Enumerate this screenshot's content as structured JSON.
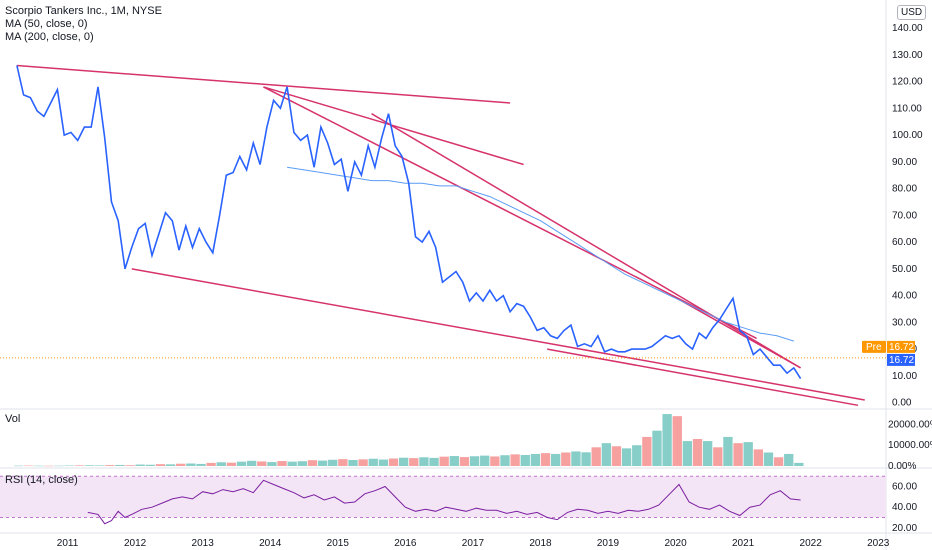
{
  "legend": {
    "title": "Scorpio Tankers Inc., 1M, NYSE",
    "ma50": "MA (50, close, 0)",
    "ma200": "MA (200, close, 0)",
    "vol": "Vol",
    "rsi": "RSI (14, close)"
  },
  "currency": "USD",
  "badges": {
    "pre_label": "Pre",
    "pre_value": "16.72",
    "last_value": "16.72"
  },
  "colors": {
    "price": "#2962ff",
    "ma": "#5b9cf6",
    "trend": "#d6336c",
    "vol_up": "#26a69a",
    "vol_down": "#ef5350",
    "rsi_line": "#7b1fa2",
    "rsi_bg": "#f3e5f5",
    "pre_badge": "#ff9800",
    "last_badge": "#2962ff"
  },
  "chart_data": [
    {
      "type": "line",
      "x_ticks": [
        "2011",
        "2012",
        "2013",
        "2014",
        "2015",
        "2016",
        "2017",
        "2018",
        "2019",
        "2020",
        "2021",
        "2022",
        "2023"
      ],
      "y_ticks": [
        "140.00",
        "130.00",
        "120.00",
        "110.00",
        "100.00",
        "90.00",
        "80.00",
        "70.00",
        "60.00",
        "50.00",
        "40.00",
        "30.00",
        "20.00",
        "10.00",
        "0.00"
      ],
      "ylim": [
        -2,
        146
      ],
      "xlim": [
        2010.0,
        2023.1
      ],
      "series": [
        {
          "role": "price",
          "x": [
            2010.25,
            2010.35,
            2010.45,
            2010.55,
            2010.65,
            2010.75,
            2010.85,
            2010.95,
            2011.05,
            2011.15,
            2011.25,
            2011.35,
            2011.45,
            2011.55,
            2011.65,
            2011.75,
            2011.85,
            2011.95,
            2012.05,
            2012.15,
            2012.25,
            2012.35,
            2012.45,
            2012.55,
            2012.65,
            2012.75,
            2012.85,
            2012.95,
            2013.05,
            2013.15,
            2013.25,
            2013.35,
            2013.45,
            2013.55,
            2013.65,
            2013.75,
            2013.85,
            2013.95,
            2014.05,
            2014.15,
            2014.25,
            2014.35,
            2014.45,
            2014.55,
            2014.65,
            2014.75,
            2014.85,
            2014.95,
            2015.05,
            2015.15,
            2015.25,
            2015.35,
            2015.45,
            2015.55,
            2015.65,
            2015.75,
            2015.85,
            2015.95,
            2016.05,
            2016.15,
            2016.25,
            2016.35,
            2016.45,
            2016.55,
            2016.65,
            2016.75,
            2016.85,
            2016.95,
            2017.05,
            2017.15,
            2017.25,
            2017.35,
            2017.45,
            2017.55,
            2017.65,
            2017.75,
            2017.85,
            2017.95,
            2018.05,
            2018.15,
            2018.25,
            2018.35,
            2018.45,
            2018.55,
            2018.65,
            2018.75,
            2018.85,
            2018.95,
            2019.05,
            2019.15,
            2019.25,
            2019.35,
            2019.45,
            2019.55,
            2019.65,
            2019.75,
            2019.85,
            2019.95,
            2020.05,
            2020.15,
            2020.25,
            2020.35,
            2020.45,
            2020.55,
            2020.65,
            2020.75,
            2020.85,
            2020.95,
            2021.05,
            2021.15,
            2021.25,
            2021.35,
            2021.45,
            2021.55,
            2021.65,
            2021.75,
            2021.85
          ],
          "y": [
            126,
            115,
            114,
            109,
            107,
            112,
            117,
            100,
            101,
            98,
            103,
            103,
            118,
            99,
            75,
            68,
            50,
            58,
            65,
            67,
            55,
            63,
            71,
            68,
            57,
            66,
            58,
            65,
            60,
            56,
            70,
            85,
            86,
            92,
            87,
            97,
            89,
            103,
            113,
            110,
            118,
            101,
            98,
            100,
            88,
            103,
            97,
            89,
            91,
            79,
            90,
            85,
            96,
            88,
            99,
            108,
            96,
            92,
            82,
            62,
            60,
            64,
            58,
            45,
            47,
            49,
            45,
            38,
            41,
            38,
            42,
            38,
            40,
            34,
            37,
            36,
            32,
            27,
            28,
            25,
            24,
            27,
            29,
            21,
            22,
            21,
            25,
            19,
            20,
            19,
            19,
            20,
            20,
            20,
            21,
            23,
            25,
            24,
            25,
            22,
            20,
            26,
            24,
            28,
            31,
            35,
            39,
            27,
            25,
            18,
            20,
            17,
            14,
            14,
            11,
            13,
            9
          ],
          "values_note_y_as_read": true
        },
        {
          "role": "ma200",
          "x": [
            2014.25,
            2014.5,
            2014.75,
            2015.0,
            2015.25,
            2015.5,
            2015.75,
            2016.0,
            2016.25,
            2016.5,
            2016.75,
            2017.0,
            2017.25,
            2017.5,
            2017.75,
            2018.0,
            2018.25,
            2018.5,
            2018.75,
            2019.0,
            2019.25,
            2019.5,
            2019.75,
            2020.0,
            2020.25,
            2020.5,
            2020.75,
            2021.0,
            2021.25,
            2021.5,
            2021.75
          ],
          "y": [
            88,
            87,
            86,
            85,
            84,
            83,
            83,
            82,
            82,
            81,
            81,
            79,
            77,
            74,
            71,
            68,
            64,
            60,
            56,
            52,
            48,
            45,
            42,
            39,
            36,
            33,
            30,
            28,
            26,
            25,
            23
          ]
        }
      ],
      "trendlines": [
        {
          "x": [
            2010.25,
            2017.55
          ],
          "y": [
            126,
            112
          ]
        },
        {
          "x": [
            2013.9,
            2017.75
          ],
          "y": [
            118,
            89
          ]
        },
        {
          "x": [
            2013.9,
            2021.2
          ],
          "y": [
            118,
            24
          ]
        },
        {
          "x": [
            2015.5,
            2021.85
          ],
          "y": [
            108,
            13
          ]
        },
        {
          "x": [
            2019.95,
            2021.85
          ],
          "y": [
            40,
            13
          ]
        },
        {
          "x": [
            2011.95,
            2022.8
          ],
          "y": [
            50,
            1
          ]
        },
        {
          "x": [
            2018.1,
            2022.7
          ],
          "y": [
            20,
            -1
          ]
        }
      ],
      "last_price": 16.72
    },
    {
      "type": "bar",
      "name": "Vol",
      "y_ticks": [
        "20000.00%",
        "10000.00%",
        "0.00%"
      ],
      "ylim": [
        0,
        26000
      ],
      "values": [
        180,
        220,
        150,
        120,
        160,
        240,
        300,
        350,
        280,
        420,
        500,
        380,
        700,
        600,
        900,
        800,
        1100,
        1200,
        1000,
        1500,
        1800,
        1600,
        2100,
        2500,
        2200,
        1900,
        2400,
        2100,
        2300,
        2800,
        2600,
        3000,
        3300,
        2900,
        3200,
        3500,
        3100,
        3600,
        4000,
        3800,
        4200,
        3900,
        4500,
        4800,
        4300,
        4700,
        5000,
        4600,
        5200,
        5600,
        5300,
        5800,
        6200,
        5800,
        6500,
        7000,
        6600,
        9000,
        11000,
        9500,
        8500,
        10000,
        14000,
        17000,
        25000,
        24000,
        12000,
        13000,
        12000,
        9000,
        14000,
        11000,
        11500,
        8000,
        6500,
        4200,
        5800,
        1500
      ],
      "up": [
        true,
        false,
        true,
        false,
        true,
        true,
        false,
        true,
        true,
        false,
        true,
        false,
        true,
        true,
        false,
        true,
        false,
        true,
        true,
        false,
        true,
        false,
        true,
        true,
        false,
        true,
        false,
        true,
        true,
        false,
        true,
        true,
        false,
        true,
        false,
        true,
        true,
        false,
        true,
        false,
        true,
        true,
        false,
        true,
        false,
        true,
        true,
        false,
        true,
        false,
        true,
        true,
        false,
        true,
        false,
        true,
        true,
        false,
        true,
        false,
        true,
        true,
        false,
        true,
        true,
        false,
        true,
        false,
        true,
        false,
        true,
        false,
        true,
        false,
        true,
        false,
        true,
        true
      ]
    },
    {
      "type": "line",
      "name": "RSI (14, close)",
      "y_ticks": [
        "60.00",
        "40.00",
        "20.00"
      ],
      "ylim": [
        16,
        76
      ],
      "bands": [
        30,
        70
      ],
      "x": [
        2011.3,
        2011.45,
        2011.55,
        2011.65,
        2011.75,
        2011.85,
        2011.95,
        2012.1,
        2012.25,
        2012.4,
        2012.55,
        2012.7,
        2012.85,
        2013.0,
        2013.15,
        2013.3,
        2013.45,
        2013.6,
        2013.75,
        2013.9,
        2014.05,
        2014.2,
        2014.35,
        2014.5,
        2014.65,
        2014.8,
        2014.95,
        2015.1,
        2015.25,
        2015.4,
        2015.55,
        2015.7,
        2015.85,
        2016.0,
        2016.15,
        2016.3,
        2016.45,
        2016.6,
        2016.75,
        2016.9,
        2017.05,
        2017.2,
        2017.35,
        2017.5,
        2017.65,
        2017.8,
        2017.95,
        2018.1,
        2018.25,
        2018.4,
        2018.55,
        2018.7,
        2018.85,
        2019.0,
        2019.15,
        2019.3,
        2019.45,
        2019.6,
        2019.75,
        2019.9,
        2020.05,
        2020.2,
        2020.35,
        2020.5,
        2020.65,
        2020.8,
        2020.95,
        2021.1,
        2021.25,
        2021.4,
        2021.55,
        2021.7,
        2021.85
      ],
      "y": [
        35,
        33,
        24,
        27,
        36,
        30,
        33,
        38,
        40,
        44,
        48,
        50,
        48,
        55,
        53,
        57,
        55,
        58,
        54,
        66,
        62,
        58,
        54,
        49,
        52,
        47,
        50,
        44,
        45,
        53,
        56,
        60,
        50,
        40,
        36,
        38,
        36,
        40,
        38,
        36,
        39,
        37,
        37,
        34,
        36,
        33,
        35,
        30,
        28,
        35,
        38,
        37,
        34,
        36,
        34,
        37,
        36,
        38,
        42,
        52,
        62,
        45,
        40,
        38,
        42,
        36,
        32,
        40,
        42,
        52,
        56,
        48,
        47
      ]
    }
  ]
}
